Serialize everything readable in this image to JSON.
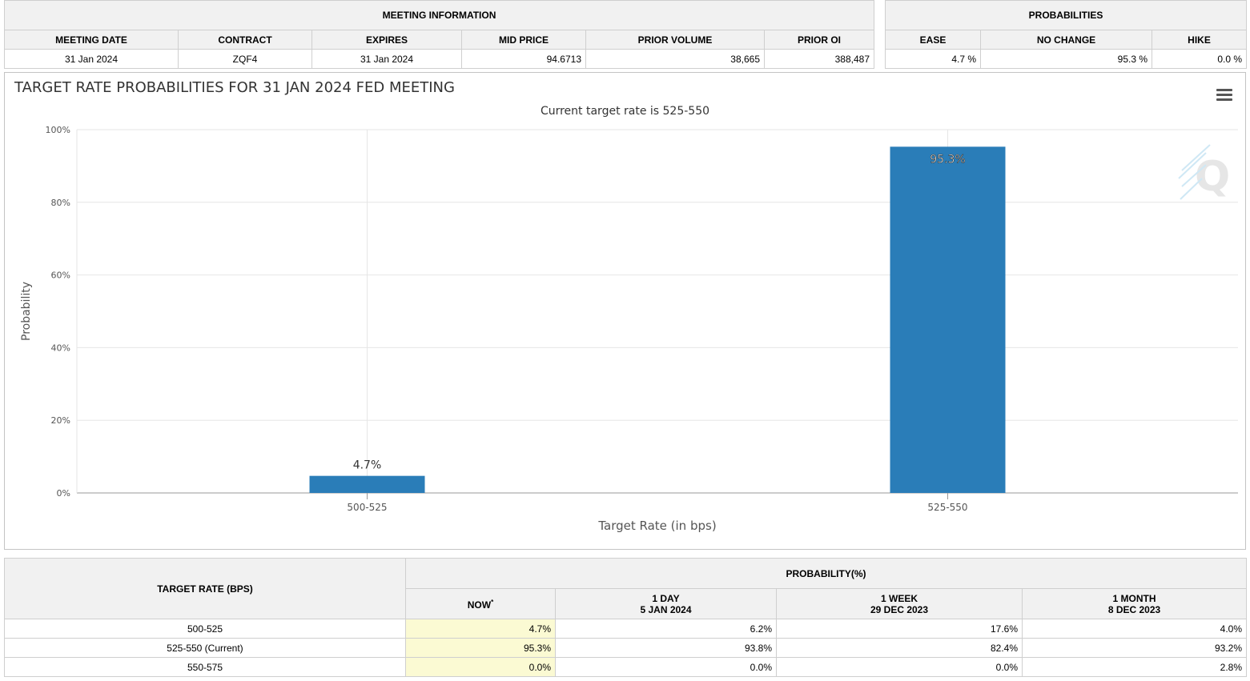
{
  "meeting_table": {
    "group_header": "MEETING INFORMATION",
    "columns": [
      "MEETING DATE",
      "CONTRACT",
      "EXPIRES",
      "MID PRICE",
      "PRIOR VOLUME",
      "PRIOR OI"
    ],
    "row": [
      "31 Jan 2024",
      "ZQF4",
      "31 Jan 2024",
      "94.6713",
      "38,665",
      "388,487"
    ]
  },
  "prob_table": {
    "group_header": "PROBABILITIES",
    "columns": [
      "EASE",
      "NO CHANGE",
      "HIKE"
    ],
    "row": [
      "4.7 %",
      "95.3 %",
      "0.0 %"
    ]
  },
  "chart": {
    "menu_icon": "hamburger-menu-icon",
    "watermark_icon": "q-logo-icon"
  },
  "chart_data": {
    "type": "bar",
    "title": "TARGET RATE PROBABILITIES FOR 31 JAN 2024 FED MEETING",
    "subtitle": "Current target rate is 525-550",
    "categories": [
      "500-525",
      "525-550"
    ],
    "values": [
      4.7,
      95.3
    ],
    "data_labels": [
      "4.7%",
      "95.3%"
    ],
    "xlabel": "Target Rate (in bps)",
    "ylabel": "Probability",
    "ylim": [
      0,
      100
    ],
    "yticks": [
      "0%",
      "20%",
      "40%",
      "60%",
      "80%",
      "100%"
    ],
    "grid": true,
    "bar_color": "#2a7db8"
  },
  "rates_table": {
    "target_header": "TARGET RATE (BPS)",
    "prob_header": "PROBABILITY(%)",
    "sub_headers": [
      {
        "line1": "NOW",
        "line2": "",
        "sup": "*"
      },
      {
        "line1": "1 DAY",
        "line2": "5 JAN 2024",
        "sup": ""
      },
      {
        "line1": "1 WEEK",
        "line2": "29 DEC 2023",
        "sup": ""
      },
      {
        "line1": "1 MONTH",
        "line2": "8 DEC 2023",
        "sup": ""
      }
    ],
    "rows": [
      {
        "rate": "500-525",
        "now": "4.7%",
        "day": "6.2%",
        "week": "17.6%",
        "month": "4.0%"
      },
      {
        "rate": "525-550 (Current)",
        "now": "95.3%",
        "day": "93.8%",
        "week": "82.4%",
        "month": "93.2%"
      },
      {
        "rate": "550-575",
        "now": "0.0%",
        "day": "0.0%",
        "week": "0.0%",
        "month": "2.8%"
      }
    ]
  }
}
